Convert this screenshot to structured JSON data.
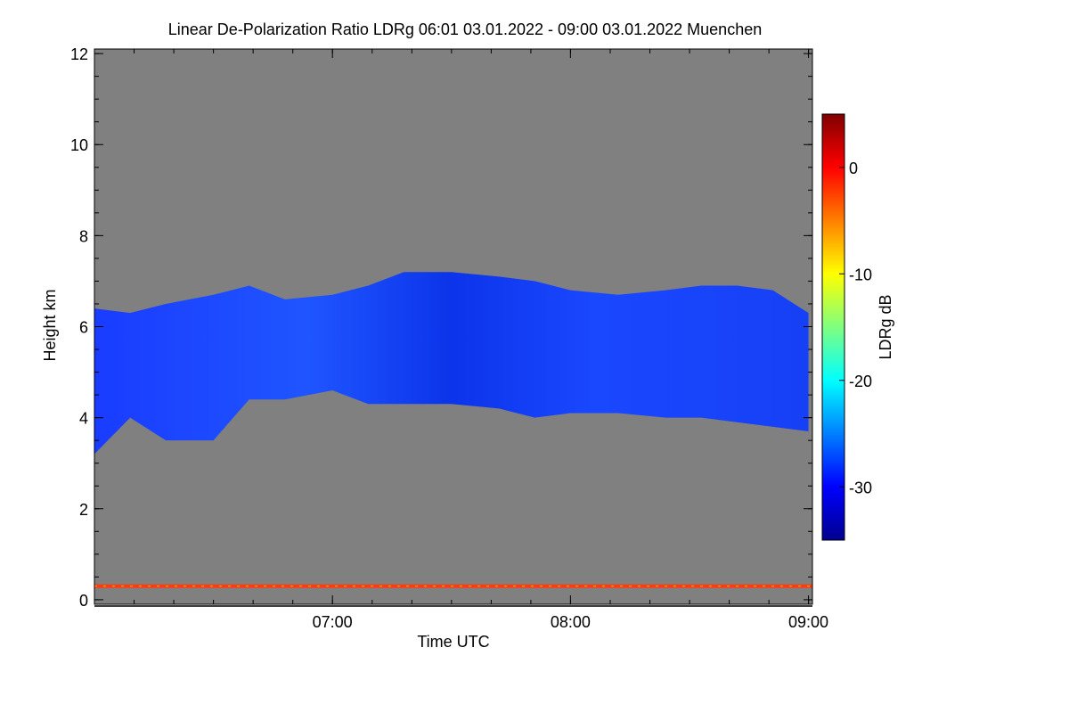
{
  "chart_data": {
    "type": "heatmap",
    "title": "Linear De-Polarization Ratio LDRg   06:01 03.01.2022 - 09:00 03.01.2022 Muenchen",
    "xlabel": "Time UTC",
    "ylabel": "Height km",
    "x_range_hours": [
      6.0,
      9.0167
    ],
    "xticks": [
      {
        "value": 7.0,
        "label": "07:00"
      },
      {
        "value": 8.0,
        "label": "08:00"
      },
      {
        "value": 9.0,
        "label": "09:00"
      }
    ],
    "x_minor_step": 0.1667,
    "ylim": [
      -0.1,
      12.1
    ],
    "yticks": [
      0,
      2,
      4,
      6,
      8,
      10,
      12
    ],
    "y_minor_step": 0.5,
    "no_data_color": "#808080",
    "colorbar": {
      "label": "LDRg dB",
      "range": [
        -35,
        5
      ],
      "ticks": [
        0,
        -10,
        -20,
        -30
      ],
      "colormap": "jet"
    },
    "cloud_layer": {
      "description": "depolarization values mostly -30 to -33 dB",
      "typical_ldr_db": -31,
      "time_hours": [
        6.0,
        6.15,
        6.3,
        6.5,
        6.65,
        6.8,
        7.0,
        7.15,
        7.3,
        7.5,
        7.7,
        7.85,
        8.0,
        8.2,
        8.4,
        8.55,
        8.7,
        8.85,
        9.0
      ],
      "top_km": [
        6.4,
        6.3,
        6.5,
        6.7,
        6.9,
        6.6,
        6.7,
        6.9,
        7.2,
        7.2,
        7.1,
        7.0,
        6.8,
        6.7,
        6.8,
        6.9,
        6.9,
        6.8,
        6.3
      ],
      "base_km": [
        3.2,
        4.0,
        3.5,
        3.5,
        4.4,
        4.4,
        4.6,
        4.3,
        4.3,
        4.3,
        4.2,
        4.0,
        4.1,
        4.1,
        4.0,
        4.0,
        3.9,
        3.8,
        3.7
      ]
    },
    "surface_layer": {
      "height_km": 0.3,
      "ldr_db_range": [
        -5,
        0
      ]
    }
  }
}
